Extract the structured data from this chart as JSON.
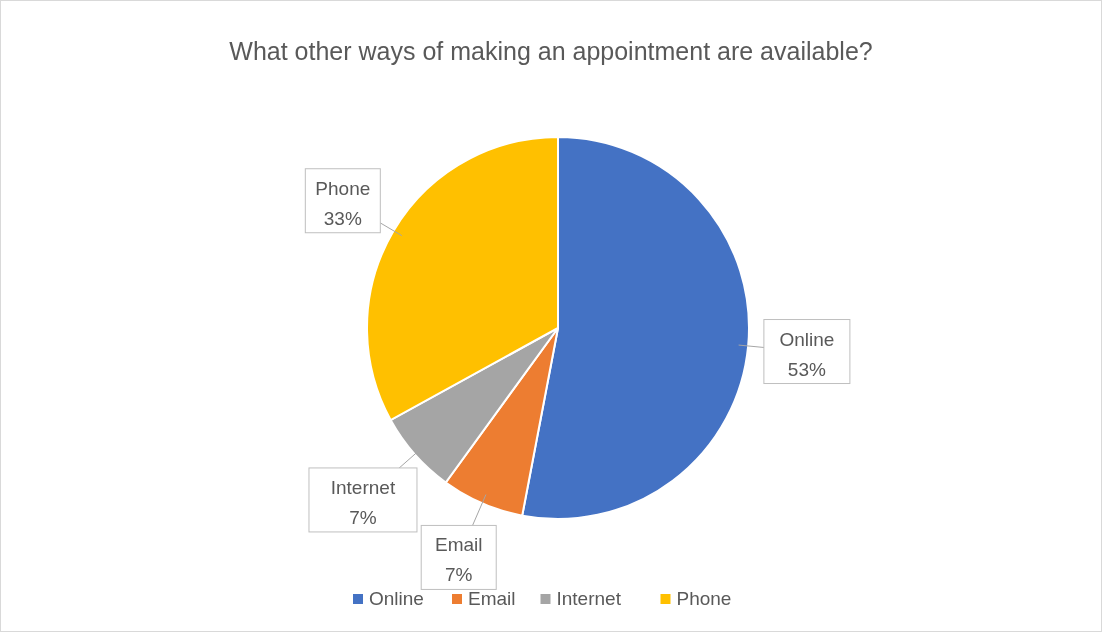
{
  "chart_data": {
    "type": "pie",
    "title": "What other ways of making an appointment are available?",
    "categories": [
      "Online",
      "Email",
      "Internet",
      "Phone"
    ],
    "values": [
      53,
      7,
      7,
      33
    ],
    "colors": [
      "#4472c4",
      "#ed7d31",
      "#a5a5a5",
      "#ffc000"
    ],
    "value_labels": [
      "53%",
      "7%",
      "7%",
      "33%"
    ],
    "legend": "bottom"
  }
}
